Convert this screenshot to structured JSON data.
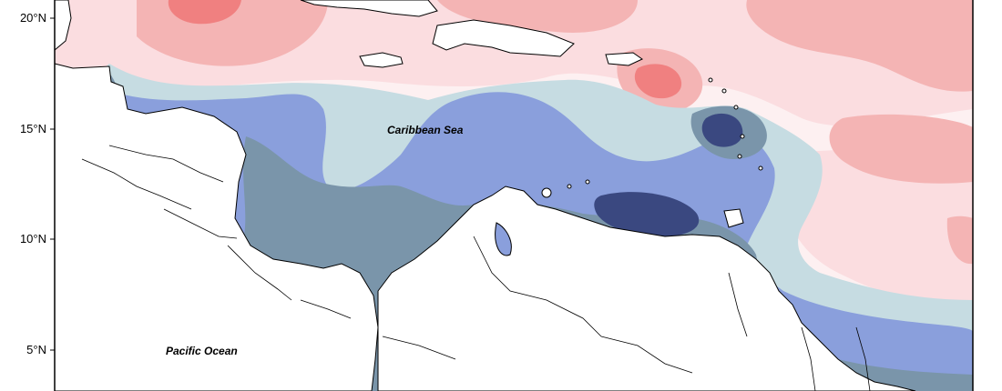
{
  "map": {
    "labels": {
      "caribbean_sea": "Caribbean Sea",
      "pacific_ocean": "Pacific Ocean"
    },
    "latitude_ticks": [
      {
        "id": "lat-20",
        "text": "20°N"
      },
      {
        "id": "lat-15",
        "text": "15°N"
      },
      {
        "id": "lat-10",
        "text": "10°N"
      },
      {
        "id": "lat-5",
        "text": "5°N"
      }
    ],
    "colors": {
      "red_strong": "#f08080",
      "red_mid": "#f4b4b4",
      "pink_light": "#fbdde0",
      "near_white": "#fdf0f1",
      "lightblue": "#c6dce2",
      "blue_mid": "#8a9fdc",
      "steel": "#7a95aa",
      "navy": "#3a4880",
      "land": "#ffffff",
      "outline": "#000000"
    }
  }
}
